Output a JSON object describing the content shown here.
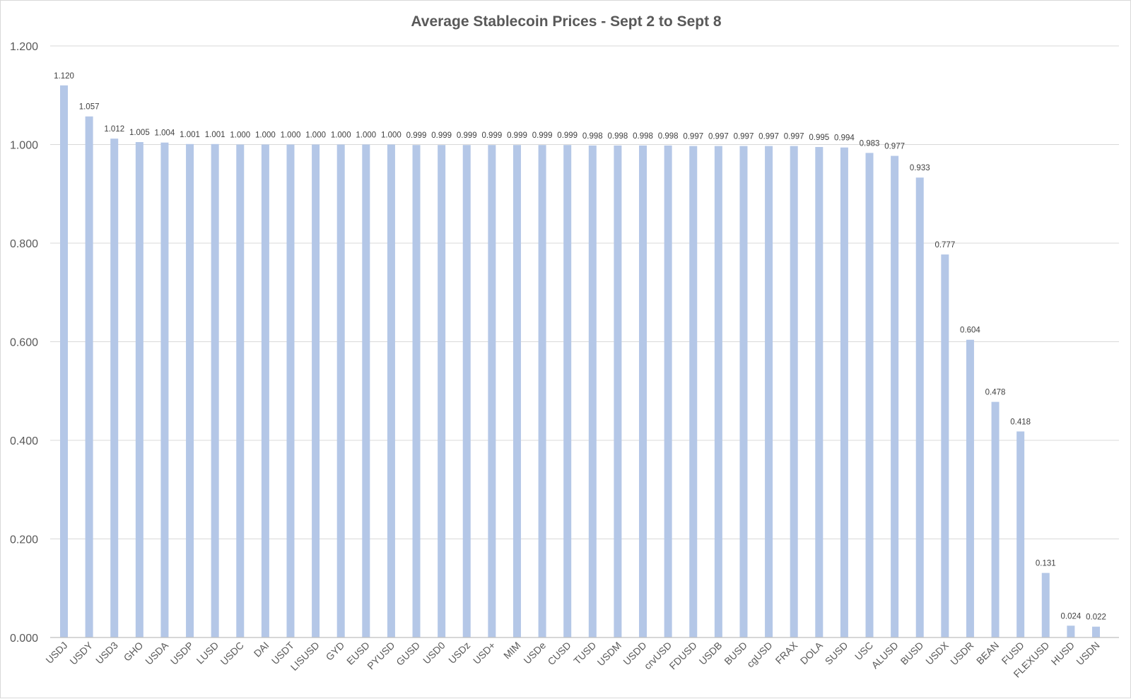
{
  "chart_data": {
    "type": "bar",
    "title": "Average Stablecoin Prices - Sept 2 to Sept 8",
    "xlabel": "",
    "ylabel": "",
    "ylim": [
      0,
      1.2
    ],
    "yticks": [
      "0.000",
      "0.200",
      "0.400",
      "0.600",
      "0.800",
      "1.000",
      "1.200"
    ],
    "grid": true,
    "legend": "none",
    "bar_color": "#b4c7e7",
    "categories": [
      "USDJ",
      "USDY",
      "USD3",
      "GHO",
      "USDA",
      "USDP",
      "LUSD",
      "USDC",
      "DAI",
      "USDT",
      "LISUSD",
      "GYD",
      "EUSD",
      "PYUSD",
      "GUSD",
      "USD0",
      "USDz",
      "USD+",
      "MIM",
      "USDe",
      "CUSD",
      "TUSD",
      "USDM",
      "USDD",
      "crvUSD",
      "FDUSD",
      "USDB",
      "BUSD",
      "cgUSD",
      "FRAX",
      "DOLA",
      "SUSD",
      "USC",
      "ALUSD",
      "BUSD",
      "USDX",
      "USDR",
      "BEAN",
      "FUSD",
      "FLEXUSD",
      "HUSD",
      "USDN"
    ],
    "values": [
      1.12,
      1.057,
      1.012,
      1.005,
      1.004,
      1.001,
      1.001,
      1.0,
      1.0,
      1.0,
      1.0,
      1.0,
      1.0,
      1.0,
      0.999,
      0.999,
      0.999,
      0.999,
      0.999,
      0.999,
      0.999,
      0.998,
      0.998,
      0.998,
      0.998,
      0.997,
      0.997,
      0.997,
      0.997,
      0.997,
      0.995,
      0.994,
      0.983,
      0.977,
      0.933,
      0.777,
      0.604,
      0.478,
      0.418,
      0.131,
      0.024,
      0.022
    ],
    "data_labels": [
      "1.120",
      "1.057",
      "1.012",
      "1.005",
      "1.004",
      "1.001",
      "1.001",
      "1.000",
      "1.000",
      "1.000",
      "1.000",
      "1.000",
      "1.000",
      "1.000",
      "0.999",
      "0.999",
      "0.999",
      "0.999",
      "0.999",
      "0.999",
      "0.999",
      "0.998",
      "0.998",
      "0.998",
      "0.998",
      "0.997",
      "0.997",
      "0.997",
      "0.997",
      "0.997",
      "0.995",
      "0.994",
      "0.983",
      "0.977",
      "0.933",
      "0.777",
      "0.604",
      "0.478",
      "0.418",
      "0.131",
      "0.024",
      "0.022"
    ]
  }
}
